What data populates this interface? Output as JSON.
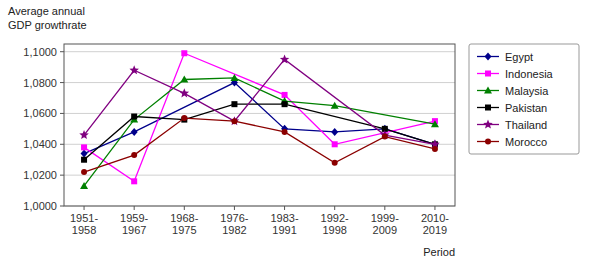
{
  "chart_data": {
    "type": "line",
    "y_label": "Average annual\nGDP growthrate",
    "x_label": "Period",
    "categories": [
      "1951-\n1958",
      "1959-\n1967",
      "1968-\n1975",
      "1976-\n1982",
      "1983-\n1991",
      "1992-\n1998",
      "1999-\n2009",
      "2010-\n2019"
    ],
    "series": [
      {
        "name": "Egypt",
        "color": "#00008B",
        "marker": "diamond",
        "values": [
          1.034,
          1.048,
          null,
          1.08,
          1.05,
          1.048,
          1.05,
          1.04
        ]
      },
      {
        "name": "Indonesia",
        "color": "#FF00FF",
        "marker": "square",
        "values": [
          1.038,
          1.016,
          1.099,
          null,
          1.072,
          1.04,
          null,
          1.055
        ]
      },
      {
        "name": "Malaysia",
        "color": "#008000",
        "marker": "triangle",
        "values": [
          1.013,
          1.056,
          1.082,
          1.083,
          1.068,
          1.065,
          null,
          1.053
        ]
      },
      {
        "name": "Pakistan",
        "color": "#000000",
        "marker": "square",
        "values": [
          1.03,
          1.058,
          1.056,
          1.066,
          1.066,
          null,
          1.05,
          1.04
        ]
      },
      {
        "name": "Thailand",
        "color": "#800080",
        "marker": "star",
        "values": [
          1.046,
          1.088,
          1.073,
          1.055,
          1.095,
          null,
          1.046,
          1.04
        ]
      },
      {
        "name": "Morocco",
        "color": "#8B0000",
        "marker": "circle",
        "values": [
          1.022,
          1.033,
          1.057,
          1.055,
          1.048,
          1.028,
          1.045,
          1.037
        ]
      }
    ],
    "ylim": [
      1.0,
      1.105
    ],
    "yticks": [
      {
        "value": 1.0,
        "label": "1,0000"
      },
      {
        "value": 1.02,
        "label": "1,0200"
      },
      {
        "value": 1.04,
        "label": "1,0400"
      },
      {
        "value": 1.06,
        "label": "1,0600"
      },
      {
        "value": 1.08,
        "label": "1,0800"
      },
      {
        "value": 1.1,
        "label": "1,1000"
      }
    ],
    "grid": true,
    "legend": "right"
  }
}
